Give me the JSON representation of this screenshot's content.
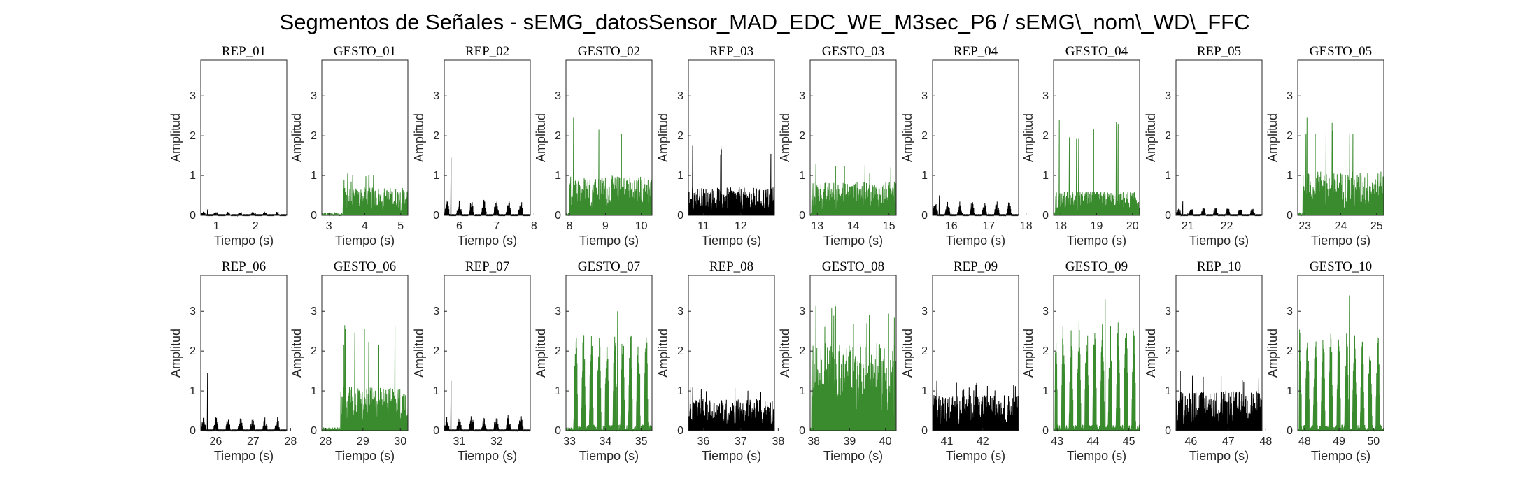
{
  "figure": {
    "title": "Segmentos de Señales - sEMG_datosSensor_MAD_EDC_WE_M3sec_P6 / sEMG\\_nom\\_WD\\_FFC"
  },
  "chart_data": {
    "type": "line",
    "ylabel": "Amplitud",
    "xlabel": "Tiempo (s)",
    "ylim": [
      0,
      3.9
    ],
    "yticks": [
      0,
      1,
      2,
      3
    ],
    "colors": {
      "rep": "#000000",
      "gesto": "#3a8a2e",
      "axis": "#262626"
    },
    "rows": 2,
    "cols": 10,
    "subplots": [
      {
        "title": "REP_01",
        "kind": "rep",
        "xlim": [
          0.6,
          2.8
        ],
        "xticks": [
          1,
          2
        ],
        "level": 0.1,
        "peak": 0.15,
        "pattern": "bursts"
      },
      {
        "title": "GESTO_01",
        "kind": "gesto",
        "xlim": [
          2.8,
          5.2
        ],
        "xticks": [
          3,
          4,
          5
        ],
        "level": 0.7,
        "peak": 1.05,
        "pattern": "noise",
        "onset": 0.25
      },
      {
        "title": "REP_02",
        "kind": "rep",
        "xlim": [
          5.6,
          7.9
        ],
        "xticks": [
          6,
          7,
          8
        ],
        "level": 0.4,
        "peak": 1.45,
        "pattern": "bursts"
      },
      {
        "title": "GESTO_02",
        "kind": "gesto",
        "xlim": [
          7.9,
          10.3
        ],
        "xticks": [
          8,
          9,
          10
        ],
        "level": 1.0,
        "peak": 2.45,
        "pattern": "noise",
        "onset": 0.04
      },
      {
        "title": "REP_03",
        "kind": "rep",
        "xlim": [
          10.6,
          12.9
        ],
        "xticks": [
          11,
          12
        ],
        "level": 0.7,
        "peak": 1.75,
        "pattern": "noise"
      },
      {
        "title": "GESTO_03",
        "kind": "gesto",
        "xlim": [
          12.8,
          15.2
        ],
        "xticks": [
          13,
          14,
          15
        ],
        "level": 0.85,
        "peak": 1.3,
        "pattern": "noise",
        "onset": 0.02
      },
      {
        "title": "REP_04",
        "kind": "rep",
        "xlim": [
          15.5,
          17.8
        ],
        "xticks": [
          16,
          17,
          18
        ],
        "level": 0.35,
        "peak": 0.5,
        "pattern": "bursts"
      },
      {
        "title": "GESTO_04",
        "kind": "gesto",
        "xlim": [
          17.8,
          20.2
        ],
        "xticks": [
          18,
          19,
          20
        ],
        "level": 0.6,
        "peak": 2.4,
        "pattern": "noise",
        "onset": 0.02
      },
      {
        "title": "REP_05",
        "kind": "rep",
        "xlim": [
          20.7,
          22.9
        ],
        "xticks": [
          21,
          22
        ],
        "level": 0.2,
        "peak": 0.35,
        "pattern": "bursts"
      },
      {
        "title": "GESTO_05",
        "kind": "gesto",
        "xlim": [
          22.8,
          25.2
        ],
        "xticks": [
          23,
          24,
          25
        ],
        "level": 1.1,
        "peak": 2.45,
        "pattern": "noise",
        "onset": 0.06
      },
      {
        "title": "REP_06",
        "kind": "rep",
        "xlim": [
          25.6,
          27.9
        ],
        "xticks": [
          26,
          27,
          28
        ],
        "level": 0.35,
        "peak": 1.45,
        "pattern": "bursts"
      },
      {
        "title": "GESTO_06",
        "kind": "gesto",
        "xlim": [
          27.9,
          30.2
        ],
        "xticks": [
          28,
          29,
          30
        ],
        "level": 1.1,
        "peak": 2.65,
        "pattern": "noise",
        "onset": 0.22
      },
      {
        "title": "REP_07",
        "kind": "rep",
        "xlim": [
          30.6,
          32.9
        ],
        "xticks": [
          31,
          32
        ],
        "level": 0.4,
        "peak": 1.25,
        "pattern": "bursts"
      },
      {
        "title": "GESTO_07",
        "kind": "gesto",
        "xlim": [
          32.9,
          35.3
        ],
        "xticks": [
          33,
          34,
          35
        ],
        "level": 2.7,
        "peak": 3.0,
        "pattern": "spikes",
        "onset": 0.08
      },
      {
        "title": "REP_08",
        "kind": "rep",
        "xlim": [
          35.6,
          37.9
        ],
        "xticks": [
          36,
          37,
          38
        ],
        "level": 0.8,
        "peak": 1.1,
        "pattern": "noise"
      },
      {
        "title": "GESTO_08",
        "kind": "gesto",
        "xlim": [
          37.9,
          40.3
        ],
        "xticks": [
          38,
          39,
          40
        ],
        "level": 2.2,
        "peak": 3.15,
        "pattern": "noise",
        "onset": 0.02
      },
      {
        "title": "REP_09",
        "kind": "rep",
        "xlim": [
          40.6,
          43.0
        ],
        "xticks": [
          41,
          42
        ],
        "level": 0.9,
        "peak": 1.25,
        "pattern": "noise"
      },
      {
        "title": "GESTO_09",
        "kind": "gesto",
        "xlim": [
          42.9,
          45.3
        ],
        "xticks": [
          43,
          44,
          45
        ],
        "level": 2.8,
        "peak": 3.3,
        "pattern": "spikes",
        "onset": 0.02
      },
      {
        "title": "REP_10",
        "kind": "rep",
        "xlim": [
          45.6,
          47.9
        ],
        "xticks": [
          46,
          47,
          48
        ],
        "level": 1.0,
        "peak": 1.5,
        "pattern": "noise"
      },
      {
        "title": "GESTO_10",
        "kind": "gesto",
        "xlim": [
          47.8,
          50.3
        ],
        "xticks": [
          48,
          49,
          50
        ],
        "level": 2.6,
        "peak": 3.4,
        "pattern": "spikes",
        "onset": 0.02
      }
    ]
  }
}
